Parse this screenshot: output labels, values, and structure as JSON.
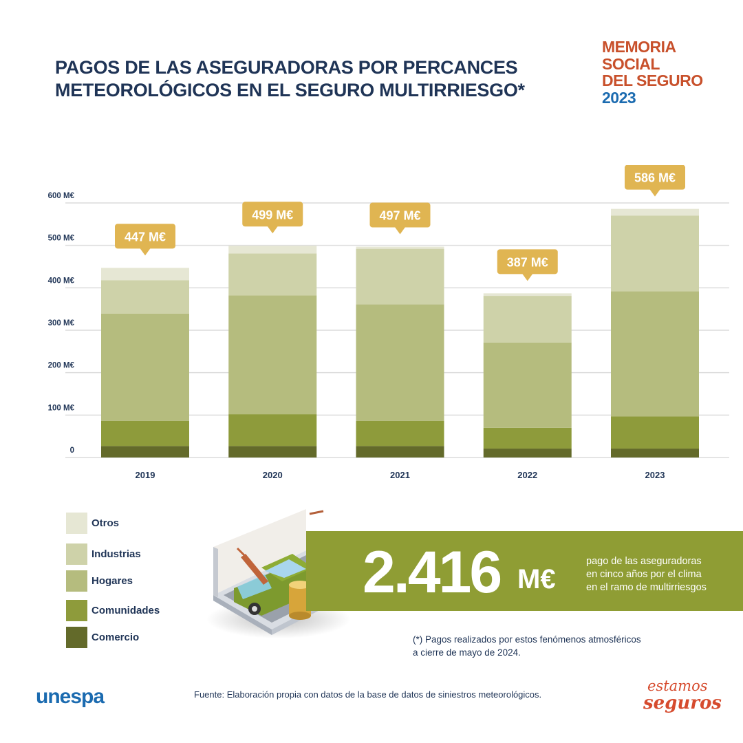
{
  "title": {
    "line1": "PAGOS DE LAS ASEGURADORAS POR PERCANCES",
    "line2": "METEOROLÓGICOS EN EL SEGURO MULTIRRIESGO*"
  },
  "brand": {
    "line1": "MEMORIA",
    "line2": "SOCIAL",
    "line3": "DEL SEGURO",
    "year": "2023"
  },
  "colors": {
    "title": "#1f3456",
    "tooltip": "#e0b552",
    "banner": "#8f9d34",
    "brand_red": "#c8502b",
    "brand_blue": "#1b6bb0",
    "gridline": "#dcdcdc"
  },
  "chart_data": {
    "type": "bar",
    "stacked": true,
    "title": "PAGOS DE LAS ASEGURADORAS POR PERCANCES METEOROLÓGICOS EN EL SEGURO MULTIRRIESGO*",
    "xlabel": "",
    "ylabel": "",
    "categories": [
      "2019",
      "2020",
      "2021",
      "2022",
      "2023"
    ],
    "ylim": [
      0,
      600
    ],
    "yticks": [
      0,
      100,
      200,
      300,
      400,
      500,
      600
    ],
    "ytick_labels": [
      "0",
      "100 M€",
      "200 M€",
      "300 M€",
      "400 M€",
      "500 M€",
      "600 M€"
    ],
    "grid": true,
    "legend_position": "bottom-left",
    "series": [
      {
        "name": "Comercio",
        "color": "#636a2a",
        "values": [
          27,
          27,
          27,
          21,
          21
        ]
      },
      {
        "name": "Comunidades",
        "color": "#8e9b3b",
        "values": [
          59,
          75,
          59,
          49,
          76
        ]
      },
      {
        "name": "Hogares",
        "color": "#b5bc7e",
        "values": [
          253,
          280,
          275,
          201,
          295
        ]
      },
      {
        "name": "Industrias",
        "color": "#ced2a9",
        "values": [
          79,
          99,
          131,
          110,
          178
        ]
      },
      {
        "name": "Otros",
        "color": "#e6e7d4",
        "values": [
          29,
          18,
          5,
          6,
          16
        ]
      }
    ],
    "totals": [
      447,
      499,
      497,
      387,
      586
    ],
    "total_labels": [
      "447 M€",
      "499 M€",
      "497 M€",
      "387 M€",
      "586 M€"
    ]
  },
  "legend": {
    "items": [
      {
        "label": "Otros",
        "color": "#e6e7d4"
      },
      {
        "label": "Industrias",
        "color": "#ced2a9"
      },
      {
        "label": "Hogares",
        "color": "#b5bc7e"
      },
      {
        "label": "Comunidades",
        "color": "#8e9b3b"
      },
      {
        "label": "Comercio",
        "color": "#636a2a"
      }
    ]
  },
  "highlight": {
    "number": "2.416",
    "unit": "M€",
    "text_line1": "pago de las aseguradoras",
    "text_line2": "en cinco años por el clima",
    "text_line3": "en el ramo de multirriesgos"
  },
  "footnote": {
    "line1": "(*) Pagos realizados por estos fenómenos atmosféricos",
    "line2": "a cierre de mayo de 2024."
  },
  "footer": {
    "logo_left": "unespa",
    "source": "Fuente: Elaboración propia con datos de la base de datos de siniestros meteorológicos.",
    "logo_right_line1": "estamos",
    "logo_right_line2": "seguros"
  },
  "illustration": {
    "icon": "car-crash-tree-coins-illustration"
  }
}
